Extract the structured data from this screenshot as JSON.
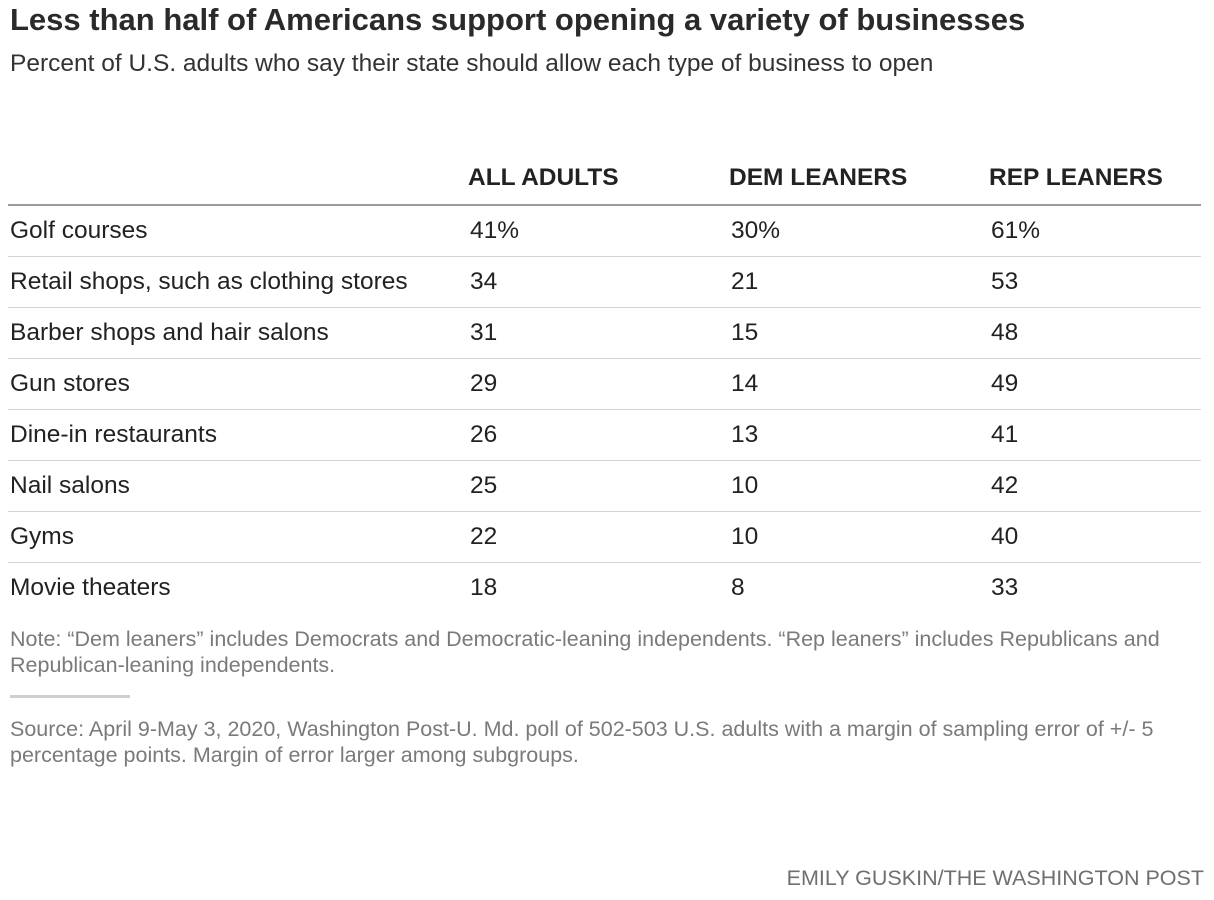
{
  "chart_data": {
    "type": "table",
    "title": "Less than half of Americans support opening a variety of businesses",
    "subtitle": "Percent of U.S. adults who say their state should allow each type of business to open",
    "columns": [
      "ALL ADULTS",
      "DEM LEANERS",
      "REP LEANERS"
    ],
    "rows": [
      {
        "label": "Golf courses",
        "all": "41%",
        "dem": "30%",
        "rep": "61%"
      },
      {
        "label": "Retail shops, such as clothing stores",
        "all": "34",
        "dem": "21",
        "rep": "53"
      },
      {
        "label": "Barber shops and hair salons",
        "all": "31",
        "dem": "15",
        "rep": "48"
      },
      {
        "label": "Gun stores",
        "all": "29",
        "dem": "14",
        "rep": "49"
      },
      {
        "label": "Dine-in restaurants",
        "all": "26",
        "dem": "13",
        "rep": "41"
      },
      {
        "label": "Nail salons",
        "all": "25",
        "dem": "10",
        "rep": "42"
      },
      {
        "label": "Gyms",
        "all": "22",
        "dem": "10",
        "rep": "40"
      },
      {
        "label": "Movie theaters",
        "all": "18",
        "dem": "8",
        "rep": "33"
      }
    ],
    "note": "Note: “Dem leaners” includes Democrats and Democratic-leaning independents. “Rep leaners” includes Republicans and Republican-leaning independents.",
    "source": "Source: April 9-May 3, 2020, Washington Post-U. Md. poll of 502-503 U.S. adults with a margin of sampling error of +/- 5 percentage points. Margin of error larger among subgroups.",
    "credit": "EMILY GUSKIN/THE WASHINGTON POST"
  }
}
